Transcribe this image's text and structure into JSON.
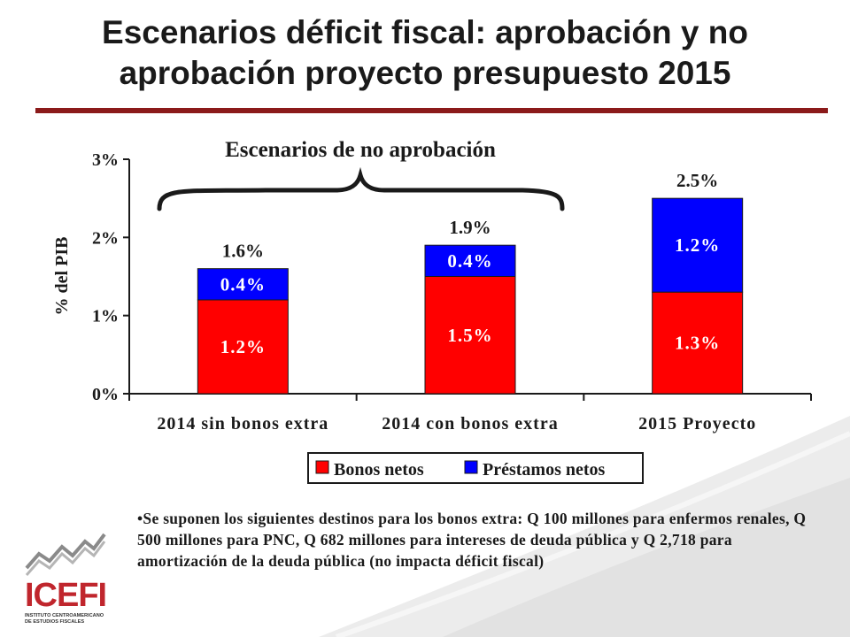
{
  "slide": {
    "title_line1": "Escenarios déficit fiscal: aprobación y no",
    "title_line2": "aprobación proyecto presupuesto 2015",
    "note": "•Se suponen los siguientes destinos para los bonos extra: Q 100 millones para enfermos renales, Q 500 millones para PNC, Q 682 millones para intereses de deuda pública y Q 2,718 para amortización de la deuda pública (no impacta déficit fiscal)"
  },
  "logo": {
    "name": "ICEFI",
    "subtitle_line1": "INSTITUTO CENTROAMERICANO",
    "subtitle_line2": "DE ESTUDIOS FISCALES",
    "color": "#c0262d"
  },
  "colors": {
    "accent_rule": "#8b1a1a",
    "bonos": "#ff0000",
    "prestamos": "#0000ff"
  },
  "chart_data": {
    "type": "bar",
    "stacked": true,
    "categories": [
      "2014 sin bonos extra",
      "2014 con bonos extra",
      "2015 Proyecto"
    ],
    "series": [
      {
        "name": "Bonos netos",
        "values": [
          1.2,
          1.5,
          1.3
        ],
        "labels": [
          "1.2%",
          "1.5%",
          "1.3%"
        ],
        "color": "#ff0000"
      },
      {
        "name": "Préstamos netos",
        "values": [
          0.4,
          0.4,
          1.2
        ],
        "labels": [
          "0.4%",
          "0.4%",
          "1.2%"
        ],
        "color": "#0000ff"
      }
    ],
    "totals": [
      "1.6%",
      "1.9%",
      "2.5%"
    ],
    "ylabel": "% del PIB",
    "ylim": [
      0,
      3
    ],
    "yticks": [
      "0%",
      "1%",
      "2%",
      "3%"
    ],
    "annotation": "Escenarios de no aprobación",
    "legend": "bottom-right",
    "grid": false
  }
}
